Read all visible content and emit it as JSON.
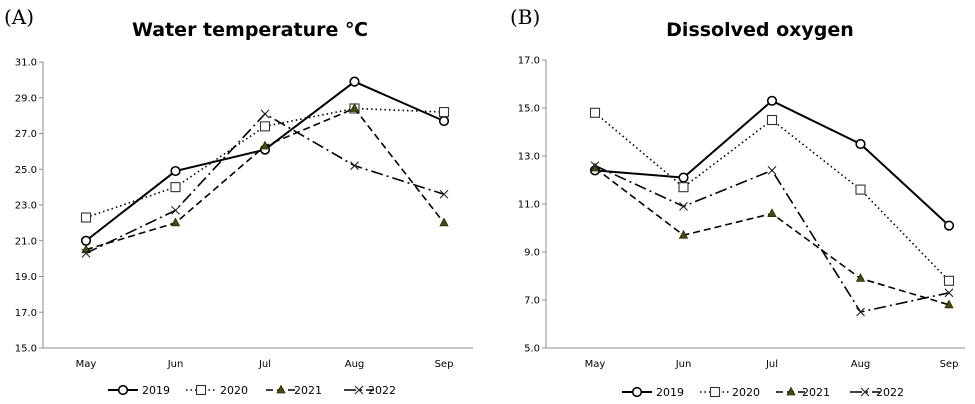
{
  "chart_data": [
    {
      "type": "line",
      "panel_label": "(A)",
      "title": "Water temperature ℃",
      "categories": [
        "May",
        "Jun",
        "Jul",
        "Aug",
        "Sep"
      ],
      "ylim": [
        15.0,
        31.0
      ],
      "yticks": [
        "15.0",
        "17.0",
        "19.0",
        "21.0",
        "23.0",
        "25.0",
        "27.0",
        "29.0",
        "31.0"
      ],
      "grid": false,
      "legend": "bottom",
      "series": [
        {
          "name": "2019",
          "values": [
            21.0,
            24.9,
            26.1,
            29.9,
            27.7
          ],
          "marker": "circle",
          "dash": "solid"
        },
        {
          "name": "2020",
          "values": [
            22.3,
            24.0,
            27.4,
            28.4,
            28.2
          ],
          "marker": "square",
          "dash": "dotted"
        },
        {
          "name": "2021",
          "values": [
            20.5,
            22.0,
            26.3,
            28.4,
            22.0
          ],
          "marker": "triangle",
          "dash": "dashed"
        },
        {
          "name": "2022",
          "values": [
            20.3,
            22.7,
            28.1,
            25.2,
            23.6
          ],
          "marker": "x",
          "dash": "dashdot"
        }
      ]
    },
    {
      "type": "line",
      "panel_label": "(B)",
      "title": "Dissolved  oxygen",
      "categories": [
        "May",
        "Jun",
        "Jul",
        "Aug",
        "Sep"
      ],
      "ylim": [
        5.0,
        17.0
      ],
      "yticks": [
        "5.0",
        "7.0",
        "9.0",
        "11.0",
        "13.0",
        "15.0",
        "17.0"
      ],
      "grid": false,
      "legend": "bottom",
      "series": [
        {
          "name": "2019",
          "values": [
            12.4,
            12.1,
            15.3,
            13.5,
            10.1
          ],
          "marker": "circle",
          "dash": "solid"
        },
        {
          "name": "2020",
          "values": [
            14.8,
            11.7,
            14.5,
            11.6,
            7.8
          ],
          "marker": "square",
          "dash": "dotted"
        },
        {
          "name": "2021",
          "values": [
            12.5,
            9.7,
            10.6,
            7.9,
            6.8
          ],
          "marker": "triangle",
          "dash": "dashed"
        },
        {
          "name": "2022",
          "values": [
            12.6,
            10.9,
            12.4,
            6.5,
            7.3
          ],
          "marker": "x",
          "dash": "dashdot"
        }
      ]
    }
  ]
}
